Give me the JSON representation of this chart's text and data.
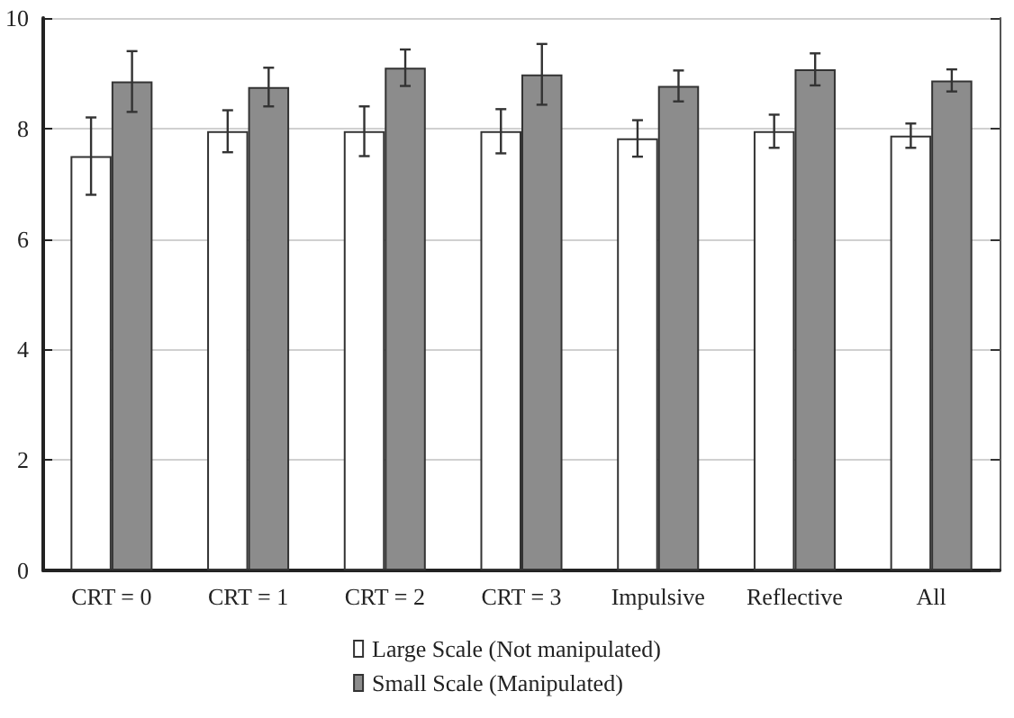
{
  "chart_data": {
    "type": "bar",
    "categories": [
      "CRT = 0",
      "CRT = 1",
      "CRT = 2",
      "CRT = 3",
      "Impulsive",
      "Reflective",
      "All"
    ],
    "series": [
      {
        "name": "Large Scale (Not manipulated)",
        "color": "#ffffff",
        "values": [
          7.5,
          7.95,
          7.95,
          7.95,
          7.82,
          7.95,
          7.87
        ],
        "errors": [
          0.7,
          0.38,
          0.45,
          0.4,
          0.33,
          0.3,
          0.22
        ]
      },
      {
        "name": "Small Scale (Manipulated)",
        "color": "#8c8c8c",
        "values": [
          8.85,
          8.75,
          9.1,
          8.98,
          8.77,
          9.07,
          8.87
        ],
        "errors": [
          0.55,
          0.35,
          0.33,
          0.55,
          0.28,
          0.29,
          0.2
        ]
      }
    ],
    "ylim": [
      0,
      10
    ],
    "yticks": [
      0,
      2,
      4,
      6,
      8,
      10
    ],
    "grid": "y",
    "legend": "bottom"
  }
}
